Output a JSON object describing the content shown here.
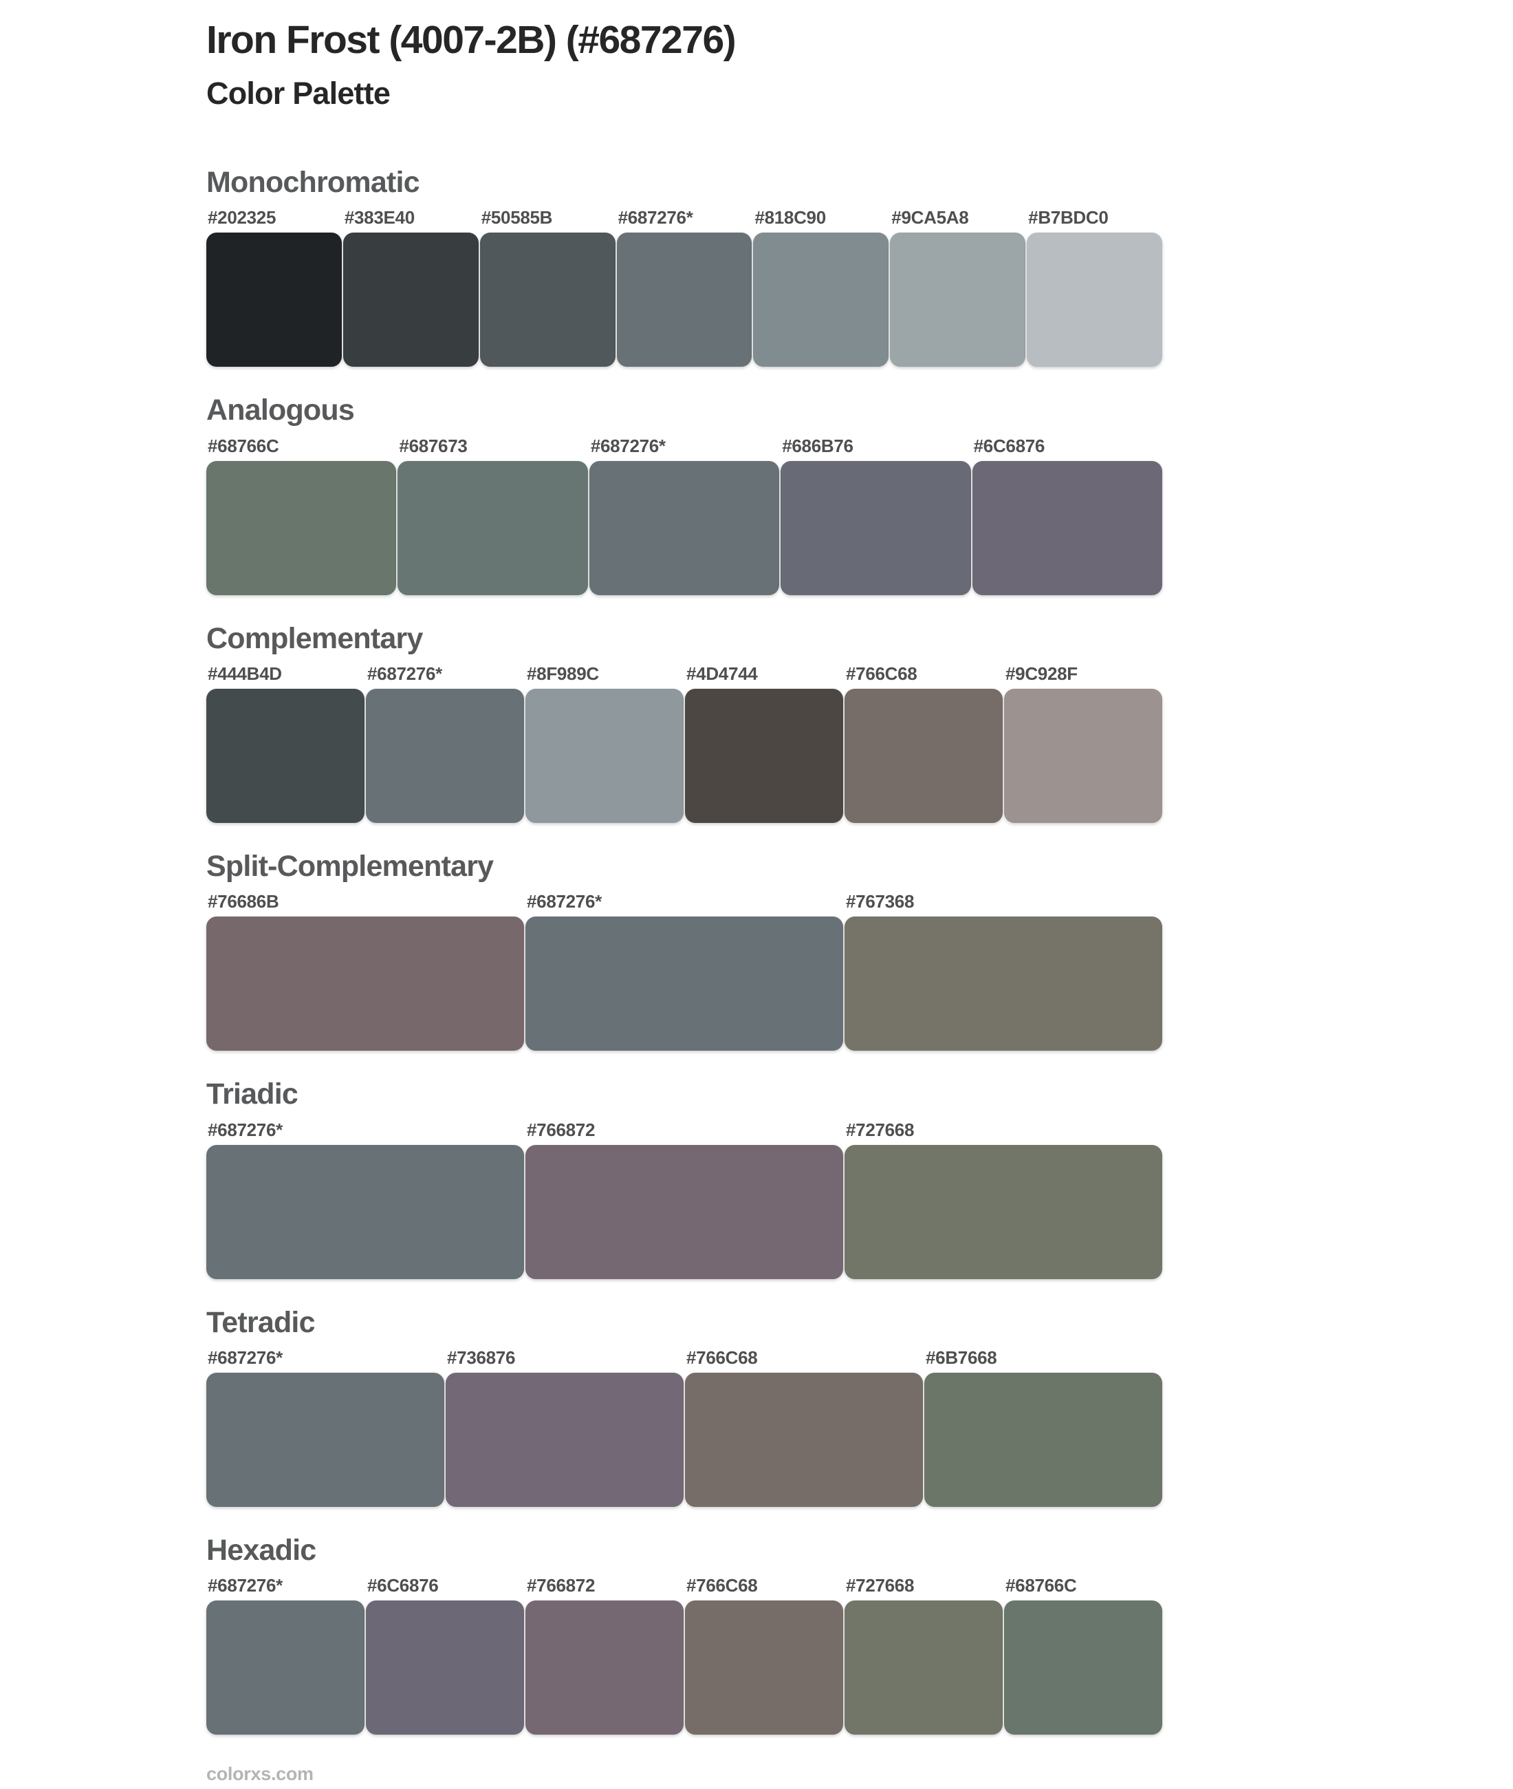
{
  "header": {
    "title": "Iron Frost (4007-2B) (#687276)",
    "subtitle": "Color Palette"
  },
  "base_color": "#687276",
  "sections": [
    {
      "name": "Monochromatic",
      "colors": [
        {
          "label": "#202325",
          "hex": "#202325"
        },
        {
          "label": "#383E40",
          "hex": "#383E40"
        },
        {
          "label": "#50585B",
          "hex": "#50585B"
        },
        {
          "label": "#687276*",
          "hex": "#687276"
        },
        {
          "label": "#818C90",
          "hex": "#818C90"
        },
        {
          "label": "#9CA5A8",
          "hex": "#9CA5A8"
        },
        {
          "label": "#B7BDC0",
          "hex": "#B7BDC0"
        }
      ]
    },
    {
      "name": "Analogous",
      "colors": [
        {
          "label": "#68766C",
          "hex": "#68766C"
        },
        {
          "label": "#687673",
          "hex": "#687673"
        },
        {
          "label": "#687276*",
          "hex": "#687276"
        },
        {
          "label": "#686B76",
          "hex": "#686B76"
        },
        {
          "label": "#6C6876",
          "hex": "#6C6876"
        }
      ]
    },
    {
      "name": "Complementary",
      "colors": [
        {
          "label": "#444B4D",
          "hex": "#444B4D"
        },
        {
          "label": "#687276*",
          "hex": "#687276"
        },
        {
          "label": "#8F989C",
          "hex": "#8F989C"
        },
        {
          "label": "#4D4744",
          "hex": "#4D4744"
        },
        {
          "label": "#766C68",
          "hex": "#766C68"
        },
        {
          "label": "#9C928F",
          "hex": "#9C928F"
        }
      ]
    },
    {
      "name": "Split-Complementary",
      "colors": [
        {
          "label": "#76686B",
          "hex": "#76686B"
        },
        {
          "label": "#687276*",
          "hex": "#687276"
        },
        {
          "label": "#767368",
          "hex": "#767368"
        }
      ]
    },
    {
      "name": "Triadic",
      "colors": [
        {
          "label": "#687276*",
          "hex": "#687276"
        },
        {
          "label": "#766872",
          "hex": "#766872"
        },
        {
          "label": "#727668",
          "hex": "#727668"
        }
      ]
    },
    {
      "name": "Tetradic",
      "colors": [
        {
          "label": "#687276*",
          "hex": "#687276"
        },
        {
          "label": "#736876",
          "hex": "#736876"
        },
        {
          "label": "#766C68",
          "hex": "#766C68"
        },
        {
          "label": "#6B7668",
          "hex": "#6B7668"
        }
      ]
    },
    {
      "name": "Hexadic",
      "colors": [
        {
          "label": "#687276*",
          "hex": "#687276"
        },
        {
          "label": "#6C6876",
          "hex": "#6C6876"
        },
        {
          "label": "#766872",
          "hex": "#766872"
        },
        {
          "label": "#766C68",
          "hex": "#766C68"
        },
        {
          "label": "#727668",
          "hex": "#727668"
        },
        {
          "label": "#68766C",
          "hex": "#68766C"
        }
      ]
    }
  ],
  "footer": {
    "site": "colorxs.com"
  }
}
